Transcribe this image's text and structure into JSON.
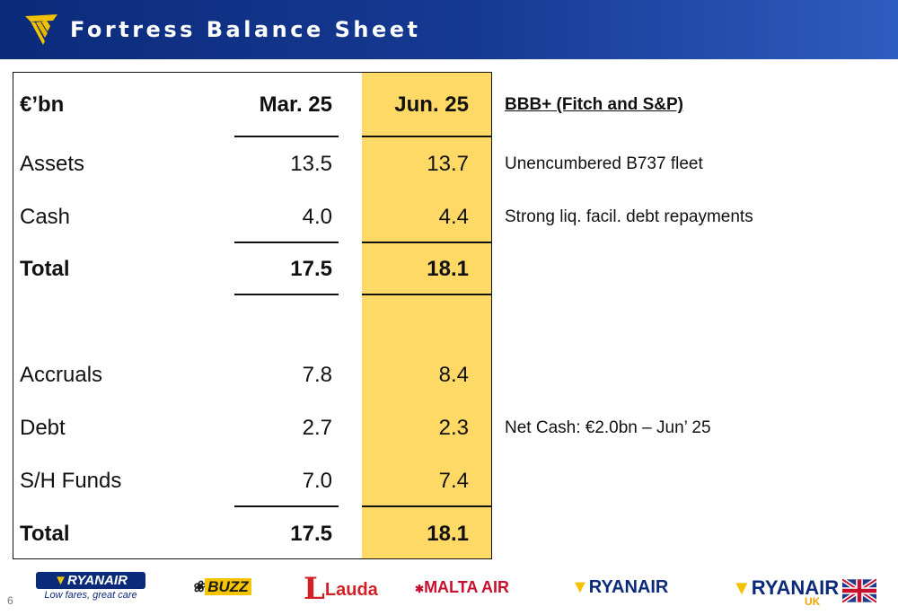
{
  "header": {
    "title": "Fortress Balance Sheet",
    "logo_icon": "ryanair-harp-icon"
  },
  "table": {
    "col_label": "€’bn",
    "col_mar": "Mar. 25",
    "col_jun": "Jun. 25",
    "rows": [
      {
        "label": "Assets",
        "mar": "13.5",
        "jun": "13.7"
      },
      {
        "label": "Cash",
        "mar": "4.0",
        "jun": "4.4"
      },
      {
        "label": "Total",
        "mar": "17.5",
        "jun": "18.1"
      },
      {
        "label": "Accruals",
        "mar": "7.8",
        "jun": "8.4"
      },
      {
        "label": "Debt",
        "mar": "2.7",
        "jun": "2.3"
      },
      {
        "label": "S/H Funds",
        "mar": "7.0",
        "jun": "7.4"
      },
      {
        "label": "Total",
        "mar": "17.5",
        "jun": "18.1"
      }
    ]
  },
  "notes": {
    "rating": "BBB+ (Fitch and S&P)",
    "fleet": "Unencumbered B737 fleet",
    "liquidity": "Strong liq. facil. debt repayments",
    "net_cash": "Net Cash: €2.0bn – Jun’ 25"
  },
  "footer": {
    "page_number": "6",
    "logos": {
      "ryanair_main": "RYANAIR",
      "ryanair_slogan": "Low fares, great care",
      "buzz": "BUZZ",
      "lauda_l": "L",
      "lauda": "Lauda",
      "malta": "MALTA AIR",
      "ryanair": "RYANAIR",
      "ryanair_uk": "RYANAIR",
      "uk": "UK"
    }
  },
  "colors": {
    "header_blue": "#163b94",
    "highlight_yellow": "#ffd966",
    "brand_gold": "#f2c200"
  }
}
